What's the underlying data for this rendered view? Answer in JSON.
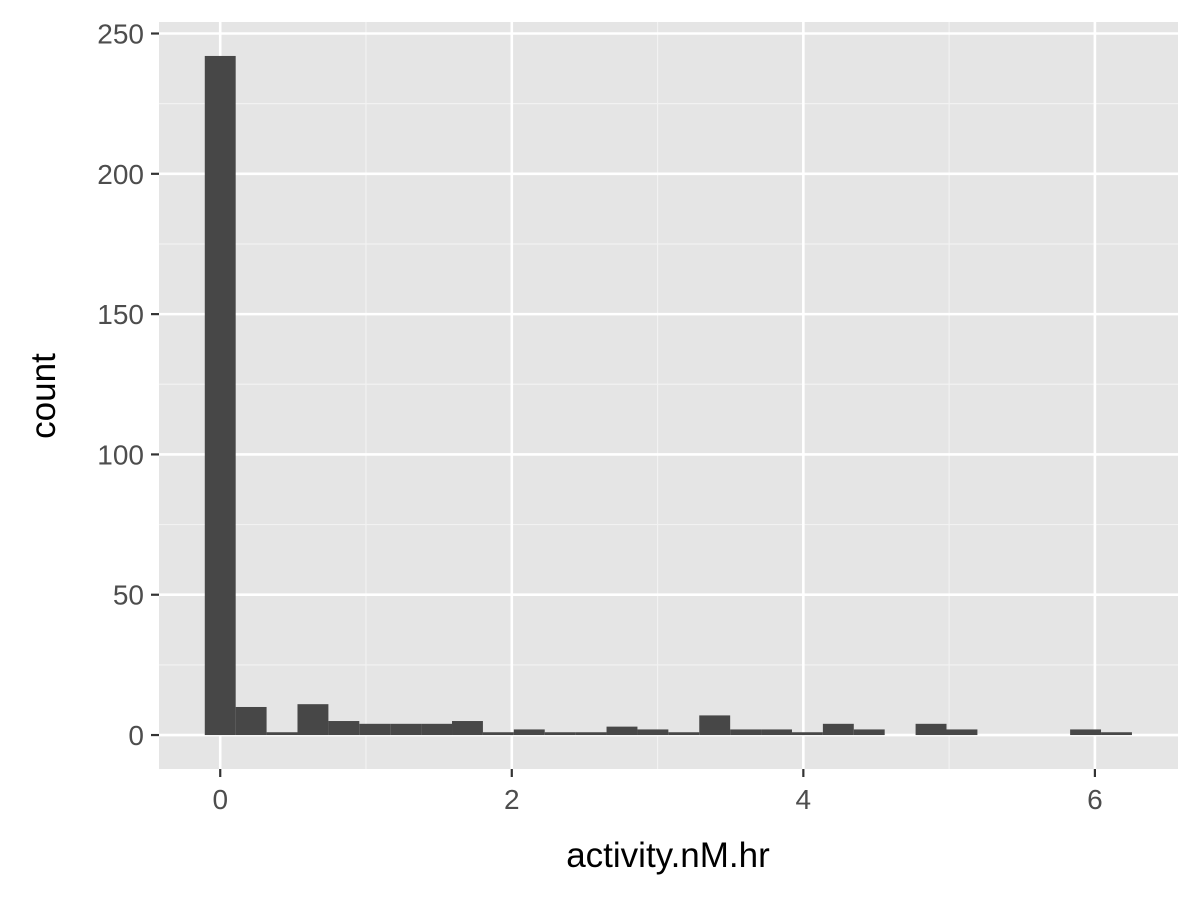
{
  "chart_data": {
    "type": "bar",
    "xlabel": "activity.nM.hr",
    "ylabel": "count",
    "xlim": [
      -0.42,
      6.57
    ],
    "ylim": [
      -12.1,
      254.1
    ],
    "x_ticks": [
      {
        "value": 0,
        "label": "0"
      },
      {
        "value": 2,
        "label": "2"
      },
      {
        "value": 4,
        "label": "4"
      },
      {
        "value": 6,
        "label": "6"
      }
    ],
    "y_ticks": [
      {
        "value": 0,
        "label": "0"
      },
      {
        "value": 50,
        "label": "50"
      },
      {
        "value": 100,
        "label": "100"
      },
      {
        "value": 150,
        "label": "150"
      },
      {
        "value": 200,
        "label": "200"
      },
      {
        "value": 250,
        "label": "250"
      }
    ],
    "bin_width": 0.212,
    "bin_centers": [
      0.0,
      0.212,
      0.424,
      0.636,
      0.848,
      1.06,
      1.272,
      1.484,
      1.696,
      1.908,
      2.12,
      2.332,
      2.544,
      2.756,
      2.968,
      3.18,
      3.392,
      3.604,
      3.816,
      4.028,
      4.24,
      4.452,
      4.664,
      4.876,
      5.088,
      5.3,
      5.512,
      5.724,
      5.936,
      6.148
    ],
    "counts": [
      242,
      10,
      1,
      11,
      5,
      4,
      4,
      4,
      5,
      1,
      2,
      1,
      1,
      3,
      2,
      1,
      7,
      2,
      2,
      1,
      4,
      2,
      0,
      4,
      2,
      0,
      0,
      0,
      2,
      1
    ],
    "grid": true,
    "colors": {
      "panel_background": "#e5e5e5",
      "grid_major": "#ffffff",
      "grid_minor": "#f2f2f2",
      "bar_fill": "#474747",
      "tick_text": "#4d4d4d",
      "tick_mark": "#333333"
    }
  }
}
